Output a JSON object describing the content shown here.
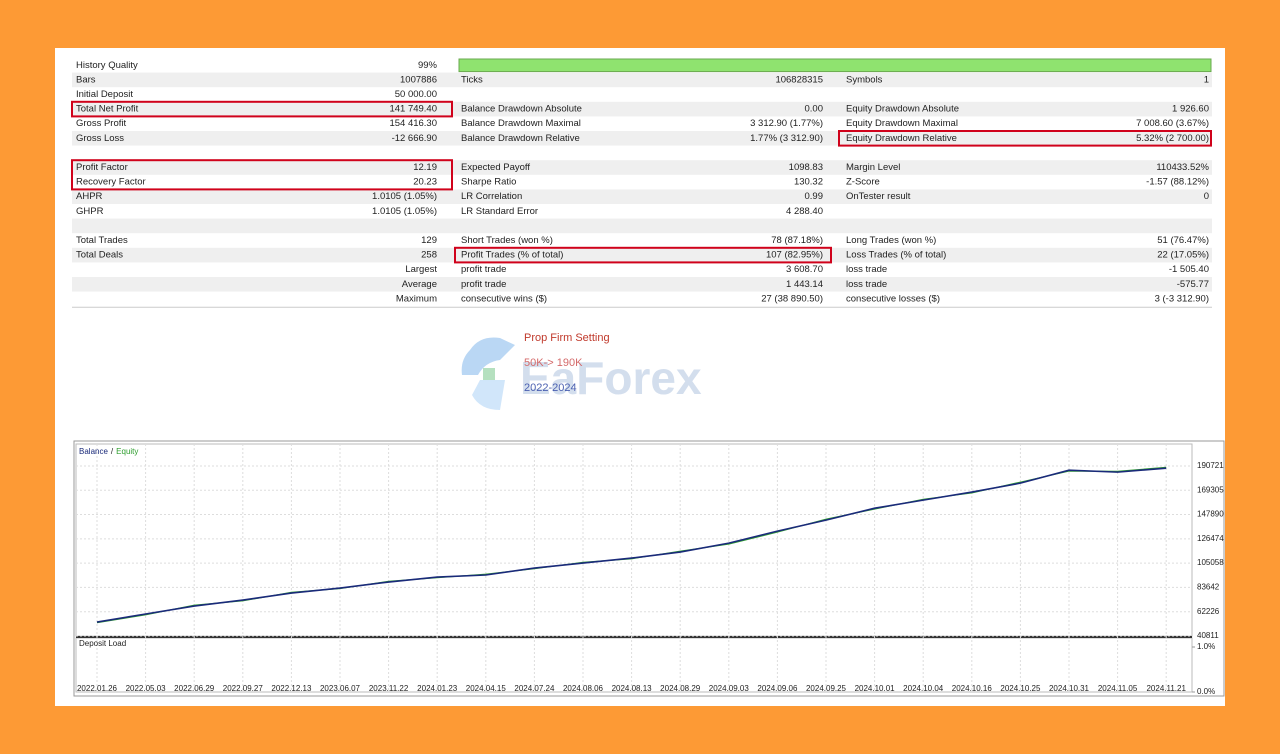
{
  "report": {
    "rows": [
      {
        "c1": [
          "History Quality",
          "99%"
        ],
        "bar": true
      },
      {
        "c1": [
          "Bars",
          "1007886"
        ],
        "c2": [
          "Ticks",
          "106828315"
        ],
        "c3": [
          "Symbols",
          "1"
        ]
      },
      {
        "c1": [
          "Initial Deposit",
          "50 000.00"
        ]
      },
      {
        "c1": [
          "Total Net Profit",
          "141 749.40"
        ],
        "c2": [
          "Balance Drawdown Absolute",
          "0.00"
        ],
        "c3": [
          "Equity Drawdown Absolute",
          "1 926.60"
        ],
        "highlight": [
          "c1"
        ]
      },
      {
        "c1": [
          "Gross Profit",
          "154 416.30"
        ],
        "c2": [
          "Balance Drawdown Maximal",
          "3 312.90 (1.77%)"
        ],
        "c3": [
          "Equity Drawdown Maximal",
          "7 008.60 (3.67%)"
        ]
      },
      {
        "c1": [
          "Gross Loss",
          "-12 666.90"
        ],
        "c2": [
          "Balance Drawdown Relative",
          "1.77% (3 312.90)"
        ],
        "c3": [
          "Equity Drawdown Relative",
          "5.32% (2 700.00)"
        ],
        "highlight": [
          "c3"
        ]
      },
      {},
      {
        "c1": [
          "Profit Factor",
          "12.19"
        ],
        "c2": [
          "Expected Payoff",
          "1098.83"
        ],
        "c3": [
          "Margin Level",
          "110433.52%"
        ],
        "highlight": [
          "c1"
        ]
      },
      {
        "c1": [
          "Recovery Factor",
          "20.23"
        ],
        "c2": [
          "Sharpe Ratio",
          "130.32"
        ],
        "c3": [
          "Z-Score",
          "-1.57 (88.12%)"
        ],
        "highlight": [
          "c1"
        ]
      },
      {
        "c1": [
          "AHPR",
          "1.0105 (1.05%)"
        ],
        "c2": [
          "LR Correlation",
          "0.99"
        ],
        "c3": [
          "OnTester result",
          "0"
        ]
      },
      {
        "c1": [
          "GHPR",
          "1.0105 (1.05%)"
        ],
        "c2": [
          "LR Standard Error",
          "4 288.40"
        ]
      },
      {},
      {
        "c1": [
          "Total Trades",
          "129"
        ],
        "c2": [
          "Short Trades (won %)",
          "78 (87.18%)"
        ],
        "c3": [
          "Long Trades (won %)",
          "51 (76.47%)"
        ]
      },
      {
        "c1": [
          "Total Deals",
          "258"
        ],
        "c2": [
          "Profit Trades (% of total)",
          "107 (82.95%)"
        ],
        "c3": [
          "Loss Trades (% of total)",
          "22 (17.05%)"
        ],
        "highlight": [
          "c2"
        ]
      },
      {
        "c1": [
          "Largest"
        ],
        "c2": [
          "profit trade",
          "3 608.70"
        ],
        "c3": [
          "loss trade",
          "-1 505.40"
        ]
      },
      {
        "c1": [
          "Average"
        ],
        "c2": [
          "profit trade",
          "1 443.14"
        ],
        "c3": [
          "loss trade",
          "-575.77"
        ]
      },
      {
        "c1": [
          "Maximum"
        ],
        "c2": [
          "consecutive wins ($)",
          "27 (38 890.50)"
        ],
        "c3": [
          "consecutive losses ($)",
          "3 (-3 312.90)"
        ]
      }
    ]
  },
  "overlay": {
    "lines": [
      "Prop Firm Setting",
      "50K-> 190K",
      "2022-2024"
    ],
    "watermark": "EaForex"
  },
  "chart_data": {
    "type": "line",
    "legend_separator": "/",
    "categories": [
      "2022.01.26",
      "2022.05.03",
      "2022.06.29",
      "2022.09.27",
      "2022.12.13",
      "2023.06.07",
      "2023.11.22",
      "2024.01.23",
      "2024.04.15",
      "2024.07.24",
      "2024.08.06",
      "2024.08.13",
      "2024.08.29",
      "2024.09.03",
      "2024.09.06",
      "2024.09.25",
      "2024.10.01",
      "2024.10.04",
      "2024.10.16",
      "2024.10.25",
      "2024.10.31",
      "2024.11.05",
      "2024.11.21"
    ],
    "series": [
      {
        "name": "Balance",
        "color": "#1a2a7a",
        "values": [
          53100,
          60200,
          67200,
          72500,
          78700,
          83100,
          88400,
          92800,
          94600,
          100700,
          105100,
          109500,
          114800,
          122700,
          133300,
          143000,
          153500,
          160600,
          167700,
          175600,
          187000,
          185300,
          188800
        ]
      },
      {
        "name": "Equity",
        "color": "#2e9e2e",
        "values": [
          52500,
          59500,
          68000,
          71800,
          79300,
          82600,
          89000,
          92200,
          95300,
          100100,
          105800,
          108900,
          115600,
          121900,
          132400,
          143800,
          152700,
          161400,
          166900,
          176500,
          186200,
          186000,
          189600
        ]
      }
    ],
    "ylim": [
      40811,
      210100
    ],
    "yticks": [
      40811,
      62226,
      83642,
      105058,
      126474,
      147890,
      169305,
      190721
    ],
    "grid": true,
    "sub_title": "Deposit Load",
    "sub_yticks": [
      {
        "value": 1,
        "label": "1.0%"
      },
      {
        "value": 0,
        "label": "0.0%"
      }
    ],
    "sub_ylim": [
      0,
      1.2
    ]
  }
}
